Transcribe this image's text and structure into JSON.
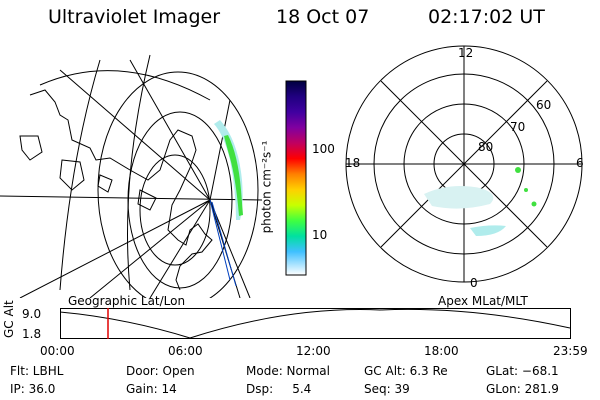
{
  "header": {
    "title": "Ultraviolet Imager",
    "date": "18 Oct 07",
    "time": "02:17:02 UT"
  },
  "colorbar": {
    "unit_label": "photon cm⁻²s⁻¹",
    "ticks": [
      "100",
      "10"
    ],
    "stops": [
      "#000040",
      "#200080",
      "#4000a0",
      "#8000a0",
      "#c00060",
      "#ff0000",
      "#ff8000",
      "#ffd000",
      "#c8ff00",
      "#40ff40",
      "#00e0a0",
      "#40c0ff",
      "#a0e0ff",
      "#ffffff"
    ]
  },
  "left_panel": {
    "label": "Geographic Lat/Lon"
  },
  "right_panel": {
    "label": "Apex MLat/MLT",
    "mlt_labels": {
      "top": "12",
      "left": "18",
      "right": "6",
      "bottom": "0"
    },
    "lat_labels": [
      "60",
      "70",
      "80"
    ]
  },
  "timeline": {
    "ylabel": "GC Alt",
    "yticks": [
      "9.0",
      "1.8"
    ],
    "xticks": [
      "00:00",
      "06:00",
      "12:00",
      "18:00",
      "23:59"
    ]
  },
  "footer": {
    "row1": {
      "filter": "Flt: LBHL",
      "door": "Door: Open",
      "mode": "Mode: Normal",
      "gc_alt": "GC Alt: 6.3 Re",
      "glat": "GLat: −68.1"
    },
    "row2": {
      "ip": "IP: 36.0",
      "gain": "Gain: 14",
      "dsp": "Dsp:     5.4",
      "seq": "Seq: 39",
      "glon": "GLon: 281.9"
    }
  },
  "colors": {
    "aurora_green": "#40e040",
    "aurora_cyan": "#b0ecec",
    "marker_red": "#e00000"
  }
}
